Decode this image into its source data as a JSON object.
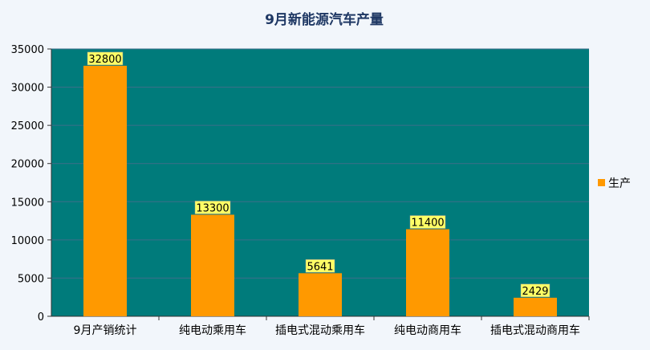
{
  "chart_data": {
    "type": "bar",
    "title": "9月新能源汽车产量",
    "xlabel": "",
    "ylabel": "",
    "categories": [
      "9月产销统计",
      "纯电动乘用车",
      "插电式混动乘用车",
      "纯电动商用车",
      "插电式混动商用车"
    ],
    "series": [
      {
        "name": "生产",
        "values": [
          32800,
          13300,
          5641,
          11400,
          2429
        ]
      }
    ],
    "data_labels": [
      "32800",
      "13300",
      "5641",
      "11400",
      "2429"
    ],
    "ylim": [
      0,
      35000
    ],
    "yticks": [
      0,
      5000,
      10000,
      15000,
      20000,
      25000,
      30000,
      35000
    ],
    "ytick_labels": [
      "0",
      "5000",
      "10000",
      "15000",
      "20000",
      "25000",
      "30000",
      "35000"
    ],
    "grid": true,
    "legend_position": "right",
    "colors": {
      "plot_background": "#007b7b",
      "bar": "#ff9900",
      "gridline": "#3d6e8a",
      "data_label_background": "#ffff66",
      "title": "#1f3864",
      "page_background": "#f2f6fb"
    }
  }
}
